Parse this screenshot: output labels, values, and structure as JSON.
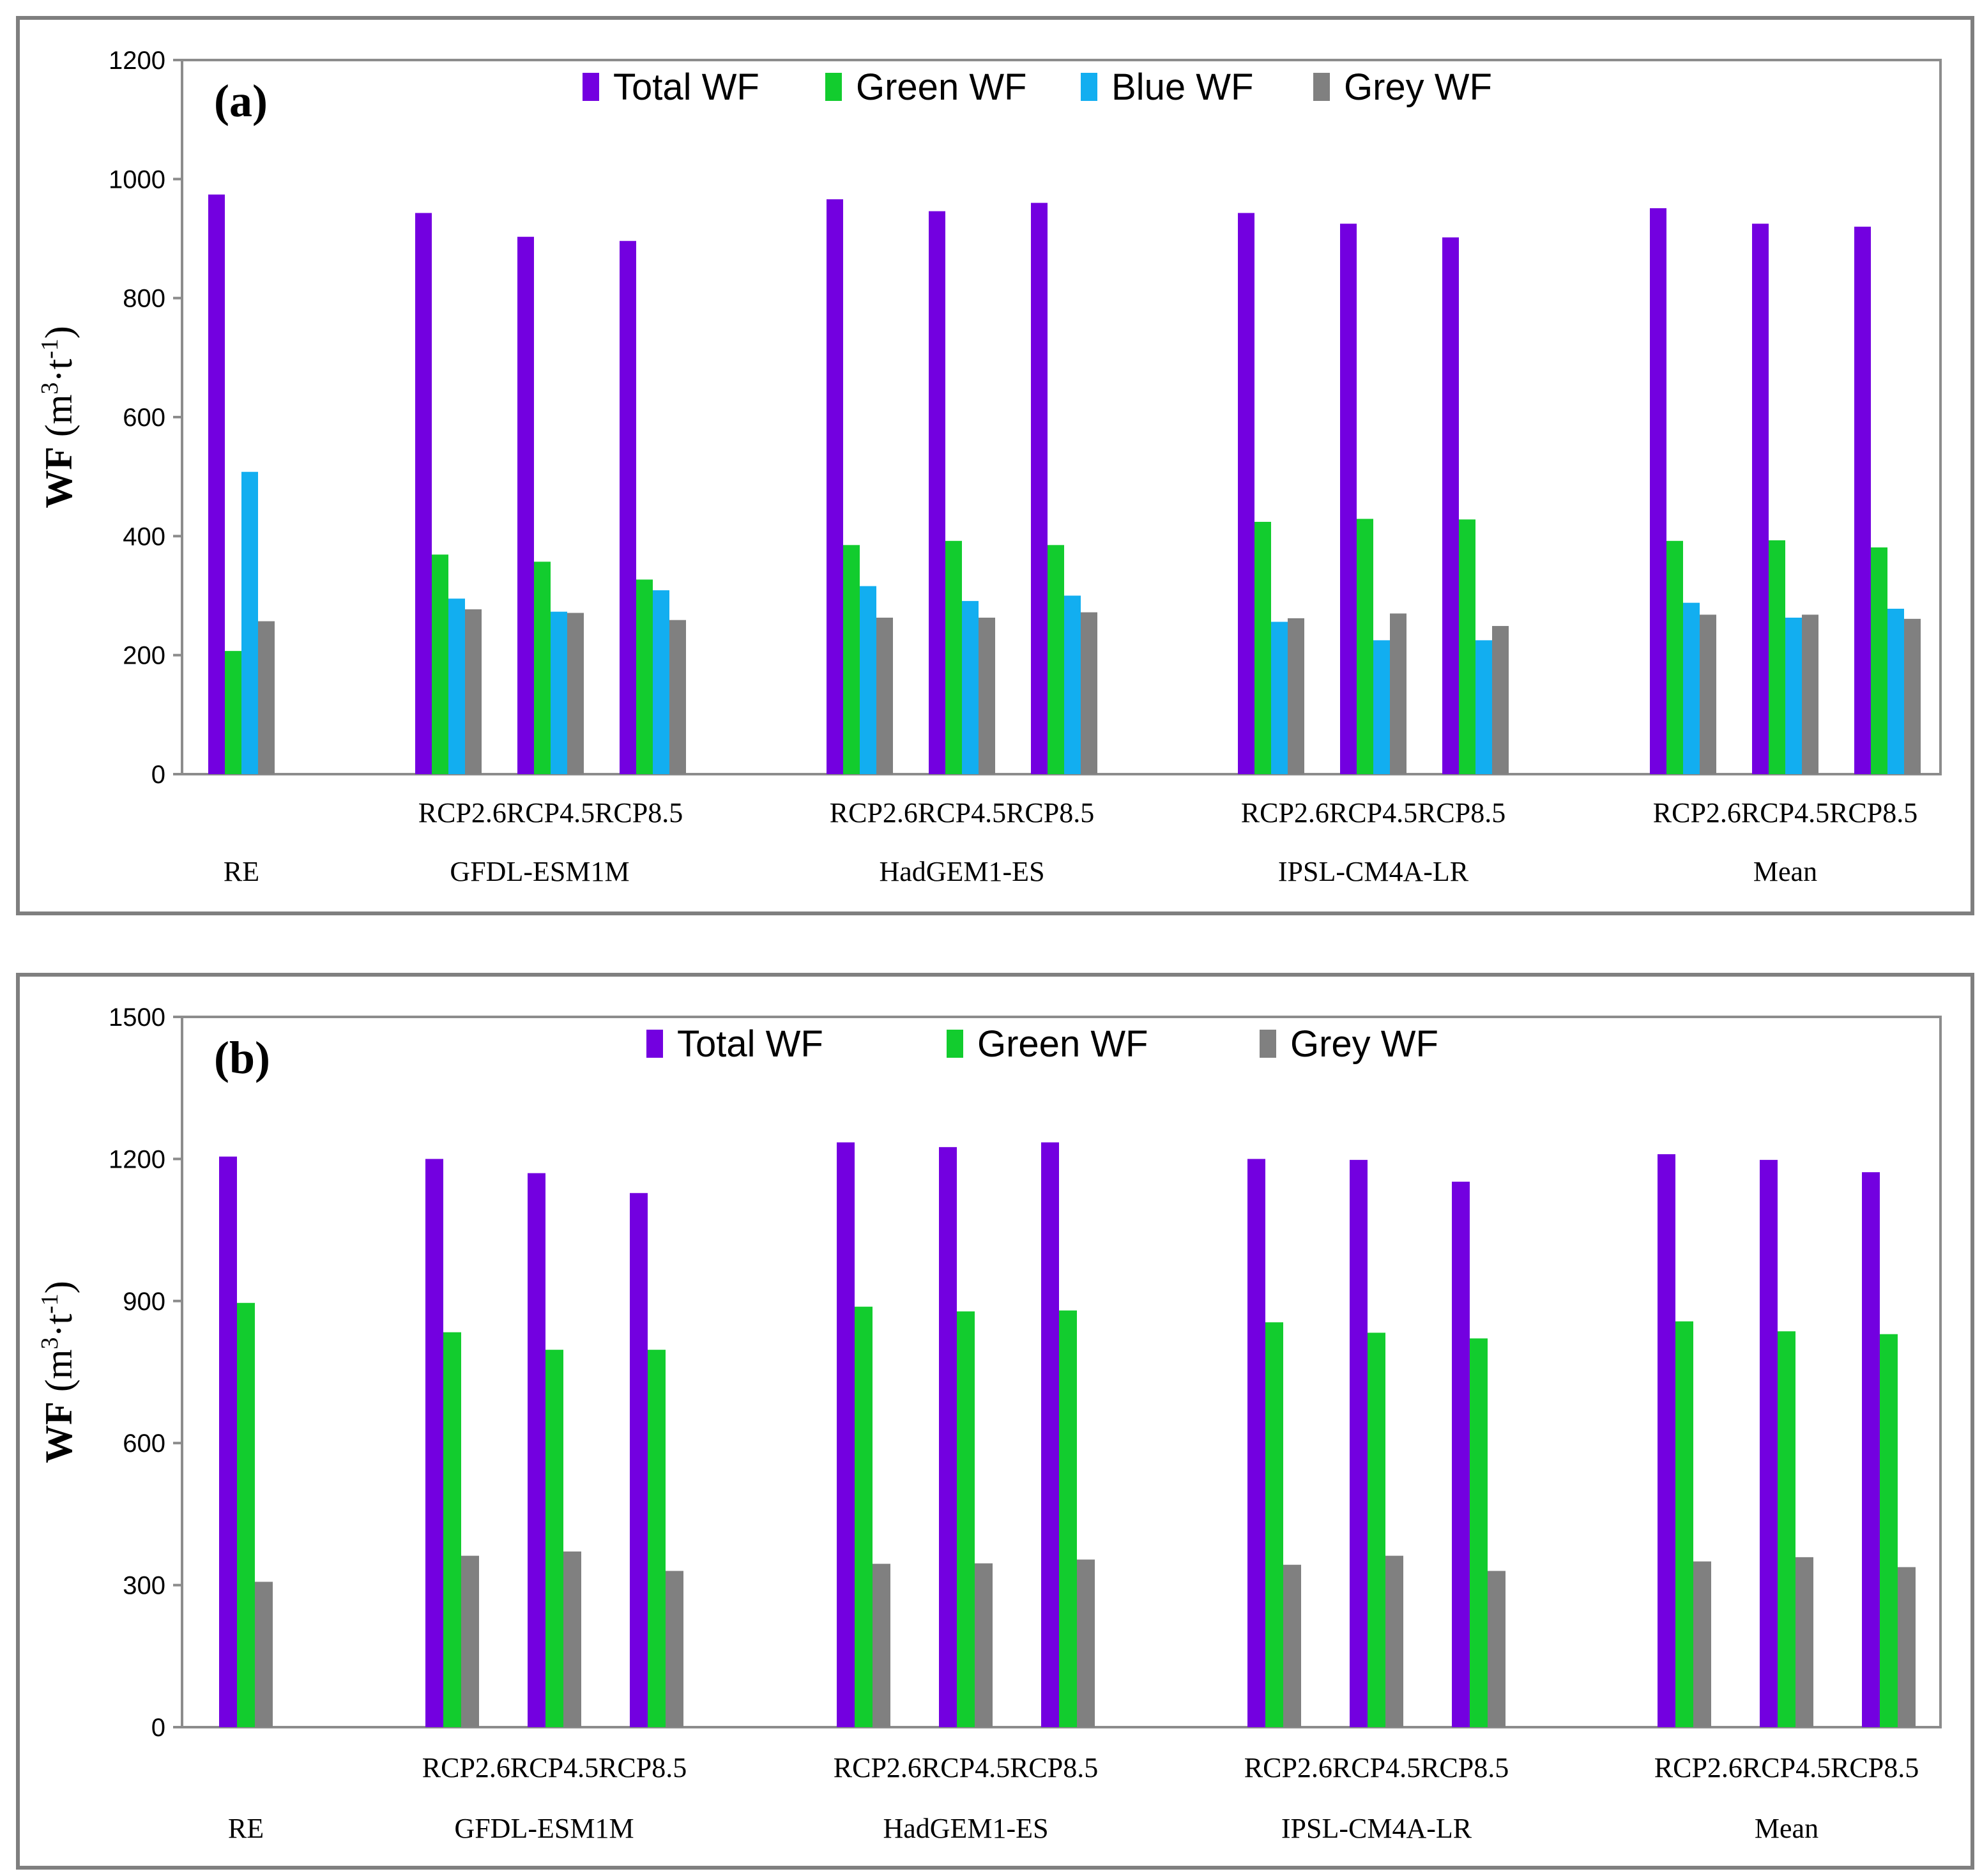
{
  "colors": {
    "total": "#7300e0",
    "green": "#12cc2e",
    "blue": "#12aef0",
    "grey": "#808080"
  },
  "chart_data": [
    {
      "type": "bar",
      "panel": "(a)",
      "ylabel": {
        "main": "WF",
        "unit_open": " (m",
        "sup1": "3",
        "mid": "·t",
        "sup2": "-1",
        "close": ")"
      },
      "ylim": [
        0,
        1200
      ],
      "yticks": [
        0,
        200,
        400,
        600,
        800,
        1000,
        1200
      ],
      "legend": [
        "Total WF",
        "Green WF",
        "Blue WF",
        "Grey WF"
      ],
      "group_labels": [
        "RE",
        "GFDL-ESM1M",
        "HadGEM1-ES",
        "IPSL-CM4A-LR",
        "Mean"
      ],
      "scenario_labels": [
        "RCP2.6RCP4.5RCP8.5",
        "RCP2.6RCP4.5RCP8.5",
        "RCP2.6RCP4.5RCP8.5",
        "RCP2.6RCP4.5RCP8.5"
      ],
      "categories": [
        "RE",
        "GFDL-ESM1M RCP2.6",
        "GFDL-ESM1M RCP4.5",
        "GFDL-ESM1M RCP8.5",
        "HadGEM1-ES RCP2.6",
        "HadGEM1-ES RCP4.5",
        "HadGEM1-ES RCP8.5",
        "IPSL-CM4A-LR RCP2.6",
        "IPSL-CM4A-LR RCP4.5",
        "IPSL-CM4A-LR RCP8.5",
        "Mean RCP2.6",
        "Mean RCP4.5",
        "Mean RCP8.5"
      ],
      "series": [
        {
          "name": "Total WF",
          "key": "total",
          "values": [
            974,
            943,
            903,
            896,
            966,
            946,
            960,
            943,
            925,
            902,
            951,
            925,
            920
          ]
        },
        {
          "name": "Green WF",
          "key": "green",
          "values": [
            207,
            369,
            357,
            327,
            385,
            392,
            385,
            424,
            429,
            428,
            392,
            393,
            381
          ]
        },
        {
          "name": "Blue WF",
          "key": "blue",
          "values": [
            508,
            295,
            273,
            309,
            316,
            291,
            300,
            256,
            225,
            225,
            288,
            263,
            278
          ]
        },
        {
          "name": "Grey WF",
          "key": "grey",
          "values": [
            257,
            277,
            271,
            259,
            263,
            263,
            272,
            262,
            270,
            249,
            268,
            268,
            261
          ]
        }
      ]
    },
    {
      "type": "bar",
      "panel": "(b)",
      "ylabel": {
        "main": "WF",
        "unit_open": " (m",
        "sup1": "3",
        "mid": "·t",
        "sup2": "-1",
        "close": ")"
      },
      "ylim": [
        0,
        1500
      ],
      "yticks": [
        0,
        300,
        600,
        900,
        1200,
        1500
      ],
      "legend": [
        "Total WF",
        "Green WF",
        "Grey WF"
      ],
      "group_labels": [
        "RE",
        "GFDL-ESM1M",
        "HadGEM1-ES",
        "IPSL-CM4A-LR",
        "Mean"
      ],
      "scenario_labels": [
        "RCP2.6RCP4.5RCP8.5",
        "RCP2.6RCP4.5RCP8.5",
        "RCP2.6RCP4.5RCP8.5",
        "RCP2.6RCP4.5RCP8.5"
      ],
      "categories": [
        "RE",
        "GFDL-ESM1M RCP2.6",
        "GFDL-ESM1M RCP4.5",
        "GFDL-ESM1M RCP8.5",
        "HadGEM1-ES RCP2.6",
        "HadGEM1-ES RCP4.5",
        "HadGEM1-ES RCP8.5",
        "IPSL-CM4A-LR RCP2.6",
        "IPSL-CM4A-LR RCP4.5",
        "IPSL-CM4A-LR RCP8.5",
        "Mean RCP2.6",
        "Mean RCP4.5",
        "Mean RCP8.5"
      ],
      "series": [
        {
          "name": "Total WF",
          "key": "total",
          "values": [
            1205,
            1200,
            1170,
            1128,
            1235,
            1225,
            1235,
            1200,
            1198,
            1152,
            1210,
            1198,
            1172
          ]
        },
        {
          "name": "Green WF",
          "key": "green",
          "values": [
            896,
            834,
            797,
            797,
            888,
            878,
            880,
            855,
            833,
            821,
            857,
            836,
            830
          ]
        },
        {
          "name": "Grey WF",
          "key": "grey",
          "values": [
            307,
            362,
            371,
            330,
            345,
            346,
            354,
            343,
            362,
            330,
            350,
            359,
            338
          ]
        }
      ]
    }
  ]
}
